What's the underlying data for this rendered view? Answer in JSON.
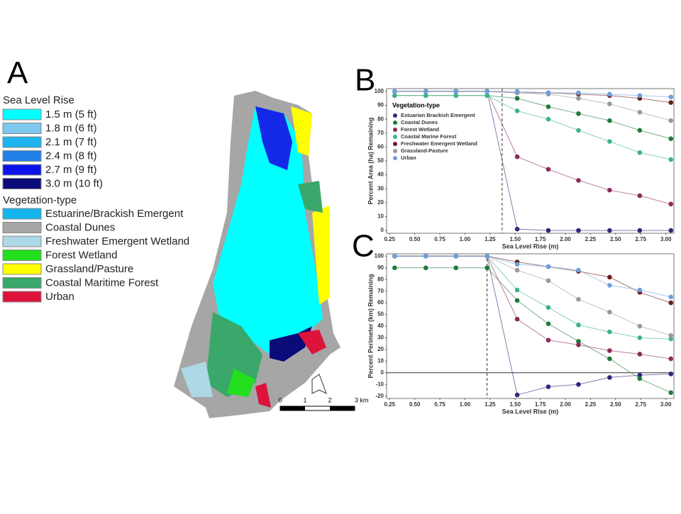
{
  "panels": {
    "a": "A",
    "b": "B",
    "c": "C"
  },
  "map": {
    "slr_title": "Sea Level Rise",
    "slr": [
      {
        "label": "1.5 m (5 ft)",
        "color": "#00ffff"
      },
      {
        "label": "1.8 m (6 ft)",
        "color": "#7ec8f0"
      },
      {
        "label": "2.1 m (7 ft)",
        "color": "#1eb4f0"
      },
      {
        "label": "2.4 m (8 ft)",
        "color": "#2080e8"
      },
      {
        "label": "2.7 m (9 ft)",
        "color": "#0a14e8"
      },
      {
        "label": "3.0 m (10 ft)",
        "color": "#0a0a78"
      }
    ],
    "veg_title": "Vegetation-type",
    "veg": [
      {
        "label": "Estuarine/Brackish Emergent",
        "color": "#16b4ee"
      },
      {
        "label": "Coastal Dunes",
        "color": "#a6a6a6"
      },
      {
        "label": "Freshwater Emergent Wetland",
        "color": "#add8e6"
      },
      {
        "label": "Forest Wetland",
        "color": "#22e01e"
      },
      {
        "label": "Grassland/Pasture",
        "color": "#ffff00"
      },
      {
        "label": "Coastal Maritime Forest",
        "color": "#3aa86a"
      },
      {
        "label": "Urban",
        "color": "#dc143c"
      }
    ],
    "scale_labels": [
      "0",
      "1",
      "2",
      "3 km"
    ]
  },
  "chart_data": [
    {
      "type": "line",
      "xlabel": "Sea Level Rise (m)",
      "ylabel": "Percent Area (ha) Remaining",
      "legend_title": "Vegetation-type",
      "legend": "upper left",
      "vline": 1.37,
      "x": [
        0.3,
        0.61,
        0.91,
        1.22,
        1.52,
        1.83,
        2.13,
        2.44,
        2.74,
        3.05
      ],
      "xlim": [
        0.22,
        3.08
      ],
      "xticks": [
        0.25,
        {
          "value": 0.5,
          "label": "0.50"
        },
        0.75,
        {
          "value": 1,
          "label": "1.00"
        },
        1.25,
        {
          "value": 1.5,
          "label": "1.50"
        },
        1.75,
        {
          "value": 2,
          "label": "2.00"
        },
        2.25,
        {
          "value": 2.5,
          "label": "2.50"
        },
        2.75,
        {
          "value": 3,
          "label": "3.00"
        }
      ],
      "ylim": [
        -2,
        102
      ],
      "yticks": [
        0,
        10,
        20,
        30,
        40,
        50,
        60,
        70,
        80,
        90,
        100
      ],
      "series": [
        {
          "name": "Estuarian Brackish Emergent",
          "color": "#2e2a78",
          "values": [
            100,
            100,
            100,
            100,
            1,
            0,
            0,
            0,
            0,
            0
          ]
        },
        {
          "name": "Coastal Dunes",
          "color": "#1e7a3a",
          "values": [
            97,
            97,
            97,
            97,
            95,
            89,
            84,
            79,
            72,
            66
          ]
        },
        {
          "name": "Forest Wetland",
          "color": "#8b2a5a",
          "values": [
            100,
            100,
            100,
            100,
            53,
            44,
            36,
            29,
            25,
            19
          ]
        },
        {
          "name": "Coastal Marine Forest",
          "color": "#3cb38c",
          "values": [
            97,
            97,
            97,
            97,
            86,
            80,
            72,
            64,
            56,
            51
          ]
        },
        {
          "name": "Freshwater Emergent Wetland",
          "color": "#6b1a1a",
          "values": [
            100,
            100,
            100,
            100,
            99,
            99,
            98,
            97,
            95,
            92
          ]
        },
        {
          "name": "Grassland-Pasture",
          "color": "#999999",
          "values": [
            100,
            100,
            100,
            100,
            99,
            98,
            95,
            91,
            85,
            79
          ]
        },
        {
          "name": "Urban",
          "color": "#6ca0dc",
          "values": [
            100,
            100,
            100,
            100,
            100,
            99,
            99,
            98,
            97,
            96
          ]
        }
      ]
    },
    {
      "type": "line",
      "xlabel": "Sea Level Rise (m)",
      "ylabel": "Percent Perimeter (km) Remaining",
      "vline": 1.22,
      "hline": 0,
      "x": [
        0.3,
        0.61,
        0.91,
        1.22,
        1.52,
        1.83,
        2.13,
        2.44,
        2.74,
        3.05
      ],
      "xlim": [
        0.22,
        3.08
      ],
      "xticks": [
        0.25,
        {
          "value": 0.5,
          "label": "0.50"
        },
        0.75,
        {
          "value": 1,
          "label": "1.00"
        },
        1.25,
        {
          "value": 1.5,
          "label": "1.50"
        },
        1.75,
        {
          "value": 2,
          "label": "2.00"
        },
        2.25,
        {
          "value": 2.5,
          "label": "2.50"
        },
        2.75,
        {
          "value": 3,
          "label": "3.00"
        }
      ],
      "ylim": [
        -22,
        102
      ],
      "yticks": [
        -20,
        -10,
        0,
        10,
        20,
        30,
        40,
        50,
        60,
        70,
        80,
        90,
        100
      ],
      "series": [
        {
          "name": "Estuarian Brackish Emergent",
          "color": "#2e2a78",
          "values": [
            100,
            100,
            100,
            100,
            -19,
            -12,
            -10,
            -4,
            -2,
            -1
          ]
        },
        {
          "name": "Coastal Dunes",
          "color": "#1e7a3a",
          "values": [
            90,
            90,
            90,
            90,
            62,
            42,
            27,
            12,
            -5,
            -17
          ]
        },
        {
          "name": "Forest Wetland",
          "color": "#8b2a5a",
          "values": [
            100,
            100,
            100,
            100,
            46,
            28,
            24,
            19,
            16,
            12
          ]
        },
        {
          "name": "Coastal Marine Forest",
          "color": "#3cb38c",
          "values": [
            100,
            100,
            100,
            100,
            71,
            56,
            41,
            35,
            30,
            29
          ]
        },
        {
          "name": "Freshwater Emergent Wetland",
          "color": "#6b1a1a",
          "values": [
            100,
            100,
            100,
            100,
            95,
            91,
            87,
            82,
            69,
            60
          ]
        },
        {
          "name": "Grassland-Pasture",
          "color": "#999999",
          "values": [
            100,
            100,
            100,
            100,
            88,
            79,
            63,
            52,
            40,
            32
          ]
        },
        {
          "name": "Urban",
          "color": "#6ca0dc",
          "values": [
            100,
            100,
            100,
            100,
            93,
            91,
            88,
            75,
            71,
            65
          ]
        }
      ]
    }
  ]
}
